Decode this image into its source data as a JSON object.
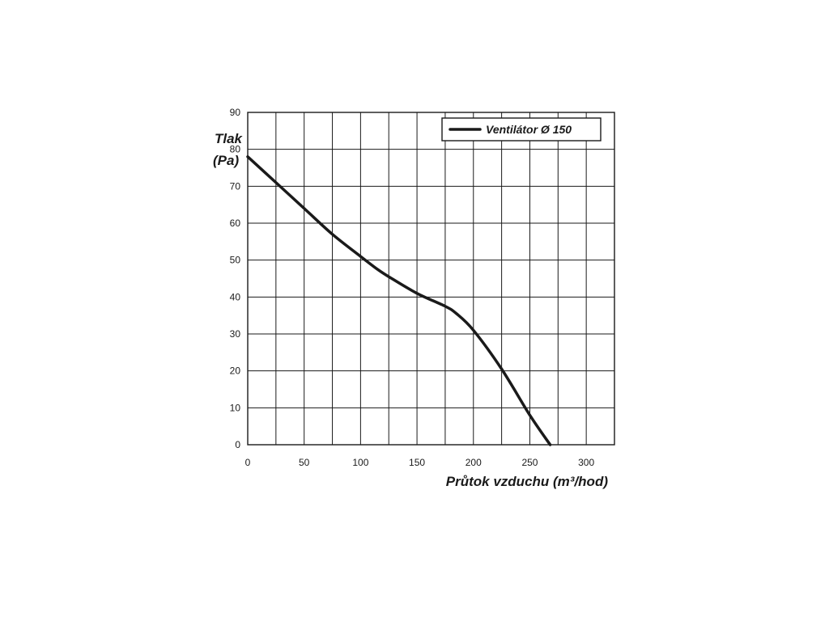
{
  "chart_data": {
    "type": "line",
    "title": "",
    "ylabel_line1": "Tlak",
    "ylabel_line2": "(Pa)",
    "xlabel": "Průtok vzduchu (m³/hod)",
    "xlim": [
      0,
      325
    ],
    "ylim": [
      0,
      90
    ],
    "x_ticks": [
      0,
      50,
      100,
      150,
      200,
      250,
      300
    ],
    "y_ticks": [
      0,
      10,
      20,
      30,
      40,
      50,
      60,
      70,
      80,
      90
    ],
    "grid": true,
    "legend_position": "top-right",
    "series": [
      {
        "name": "Ventilátor Ø 150",
        "color": "#1a1a1a",
        "x": [
          0,
          25,
          50,
          75,
          100,
          115,
          125,
          150,
          175,
          185,
          200,
          225,
          250,
          268
        ],
        "y": [
          78,
          71,
          64,
          57,
          51,
          47.5,
          45.5,
          41,
          37.5,
          35.5,
          31,
          20.5,
          8,
          0
        ]
      }
    ]
  }
}
